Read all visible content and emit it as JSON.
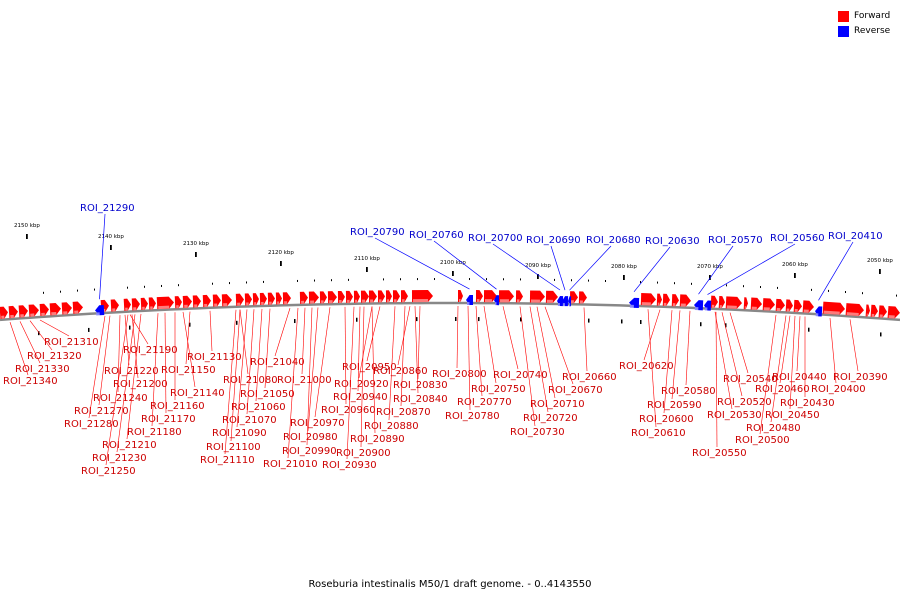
{
  "legend": {
    "forward_label": "Forward",
    "reverse_label": "Reverse",
    "forward_color": "#ff0000",
    "reverse_color": "#0000ff"
  },
  "caption": "Roseburia intestinalis M50/1 draft genome. - 0..4143550",
  "colors": {
    "forward": "#ff0000",
    "forward_light": "#ff8888",
    "reverse": "#0000ff",
    "reverse_light": "#8888ff",
    "forward_text": "#cc0000",
    "reverse_text": "#0000cc",
    "backbone": "#888888",
    "tick": "#000000"
  },
  "ticks": [
    "2150 kbp",
    "2140 kbp",
    "2130 kbp",
    "2120 kbp",
    "2110 kbp",
    "2100 kbp",
    "2090 kbp",
    "2080 kbp",
    "2070 kbp",
    "2060 kbp",
    "2050 kbp"
  ],
  "reverse_labels": [
    "ROI_21290",
    "ROI_20790",
    "ROI_20760",
    "ROI_20700",
    "ROI_20690",
    "ROI_20680",
    "ROI_20630",
    "ROI_20570",
    "ROI_20560",
    "ROI_20410"
  ],
  "forward_labels": [
    "ROI_21310",
    "ROI_21320",
    "ROI_21330",
    "ROI_21340",
    "ROI_21190",
    "ROI_21220",
    "ROI_21200",
    "ROI_21240",
    "ROI_21270",
    "ROI_21280",
    "ROI_21210",
    "ROI_21230",
    "ROI_21250",
    "ROI_21130",
    "ROI_21150",
    "ROI_21140",
    "ROI_21160",
    "ROI_21170",
    "ROI_21180",
    "ROI_21040",
    "ROI_21080",
    "ROI_21000",
    "ROI_21050",
    "ROI_21060",
    "ROI_21070",
    "ROI_21090",
    "ROI_21100",
    "ROI_21110",
    "ROI_21010",
    "ROI_20950",
    "ROI_20920",
    "ROI_20940",
    "ROI_20960",
    "ROI_20970",
    "ROI_20980",
    "ROI_20990",
    "ROI_20930",
    "ROI_20900",
    "ROI_20890",
    "ROI_20880",
    "ROI_20870",
    "ROI_20840",
    "ROI_20830",
    "ROI_20860",
    "ROI_20800",
    "ROI_20750",
    "ROI_20770",
    "ROI_20780",
    "ROI_20740",
    "ROI_20670",
    "ROI_20710",
    "ROI_20720",
    "ROI_20730",
    "ROI_20660",
    "ROI_20620",
    "ROI_20580",
    "ROI_20590",
    "ROI_20600",
    "ROI_20610",
    "ROI_20540",
    "ROI_20520",
    "ROI_20530",
    "ROI_20550",
    "ROI_20440",
    "ROI_20460",
    "ROI_20430",
    "ROI_20450",
    "ROI_20480",
    "ROI_20500",
    "ROI_20390",
    "ROI_20400"
  ]
}
